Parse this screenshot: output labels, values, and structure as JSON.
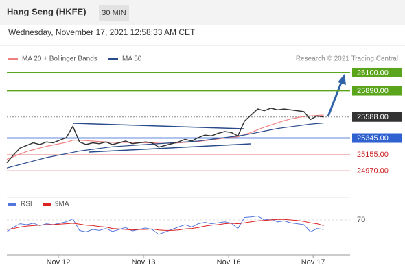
{
  "chart_data": {
    "type": "line",
    "title": "Hang Seng (HKFE)",
    "timeframe": "30 MIN",
    "subtitle": "Wednesday, November 17, 2021 12:58:33 AM CET",
    "attribution": "Research © 2021 Trading Central",
    "x": [
      0,
      1,
      2,
      3,
      4,
      5,
      6,
      7,
      8,
      9,
      10,
      11,
      12,
      13,
      14,
      15,
      16,
      17,
      18,
      19,
      20,
      21,
      22,
      23,
      24,
      25,
      26,
      27,
      28,
      29,
      30,
      31,
      32,
      33,
      34,
      35,
      36,
      37,
      38,
      39,
      40,
      41,
      42,
      43,
      44,
      45,
      46,
      47,
      48
    ],
    "values": [
      25060,
      25150,
      25230,
      25260,
      25290,
      25270,
      25300,
      25290,
      25320,
      25350,
      25480,
      25300,
      25270,
      25290,
      25280,
      25300,
      25270,
      25290,
      25310,
      25280,
      25290,
      25300,
      25290,
      25240,
      25260,
      25280,
      25300,
      25330,
      25310,
      25350,
      25380,
      25370,
      25400,
      25420,
      25410,
      25370,
      25540,
      25610,
      25680,
      25660,
      25690,
      25670,
      25680,
      25670,
      25660,
      25650,
      25560,
      25600,
      25588
    ],
    "color": "#333333",
    "series": [
      {
        "name": "MA 20 + Bollinger Bands",
        "color": "#f08080",
        "values": [
          25100,
          25130,
          25160,
          25190,
          25210,
          25230,
          25250,
          25265,
          25280,
          25295,
          25320,
          25320,
          25315,
          25310,
          25305,
          25300,
          25295,
          25295,
          25295,
          25295,
          25295,
          25290,
          25290,
          25285,
          25285,
          25285,
          25290,
          25295,
          25300,
          25305,
          25315,
          25325,
          25335,
          25345,
          25355,
          25360,
          25385,
          25410,
          25440,
          25470,
          25495,
          25520,
          25545,
          25565,
          25580,
          25595,
          25600,
          25605,
          25610
        ]
      },
      {
        "name": "MA 50",
        "color": "#2b4c8c",
        "values": [
          25000,
          25020,
          25040,
          25060,
          25080,
          25100,
          25120,
          25135,
          25150,
          25165,
          25180,
          25195,
          25205,
          25215,
          25225,
          25235,
          25245,
          25250,
          25255,
          25260,
          25265,
          25270,
          25275,
          25280,
          25285,
          25290,
          25295,
          25300,
          25305,
          25310,
          25320,
          25330,
          25340,
          25350,
          25360,
          25370,
          25380,
          25395,
          25410,
          25425,
          25440,
          25455,
          25465,
          25475,
          25485,
          25495,
          25505,
          25512,
          25518
        ]
      }
    ],
    "xlim": [
      0,
      52
    ],
    "xticks": [
      {
        "value": 7.8,
        "label": "Nov 12"
      },
      {
        "value": 20.7,
        "label": "Nov 13"
      },
      {
        "value": 33.6,
        "label": "Nov 16"
      },
      {
        "value": 46.4,
        "label": "Nov 17"
      }
    ],
    "ylim": [
      24725,
      26226
    ],
    "levels": [
      {
        "value": 26100,
        "label": "26100.00",
        "color": "#5aa51c",
        "style": "box"
      },
      {
        "value": 25890,
        "label": "25890.00",
        "color": "#5aa51c",
        "style": "box"
      },
      {
        "value": 25588,
        "label": "25588.00",
        "color": "#333333",
        "style": "box"
      },
      {
        "value": 25345,
        "label": "25345.00",
        "color": "#2f62d0",
        "style": "box"
      },
      {
        "value": 25155,
        "label": "25155.00",
        "color": "#cc2222",
        "style": "text"
      },
      {
        "value": 24970,
        "label": "24970.00",
        "color": "#cc2222",
        "style": "text"
      }
    ],
    "rsi": {
      "series": [
        {
          "name": "RSI",
          "color": "#5577dd",
          "values": [
            45,
            55,
            62,
            60,
            63,
            58,
            62,
            60,
            63,
            66,
            72,
            48,
            45,
            50,
            48,
            52,
            46,
            50,
            54,
            47,
            50,
            53,
            50,
            40,
            45,
            50,
            55,
            60,
            55,
            62,
            65,
            62,
            64,
            66,
            63,
            52,
            75,
            76,
            78,
            70,
            72,
            66,
            68,
            64,
            62,
            60,
            45,
            52,
            50
          ]
        },
        {
          "name": "9MA",
          "color": "#dd2222",
          "values": [
            50,
            52,
            55,
            57,
            58,
            59,
            60,
            60,
            61,
            62,
            63,
            61,
            59,
            58,
            56,
            55,
            52,
            51,
            50,
            49,
            50,
            50,
            51,
            49,
            48,
            48,
            49,
            51,
            52,
            54,
            57,
            59,
            60,
            62,
            63,
            62,
            64,
            66,
            68,
            69,
            70,
            71,
            71,
            70,
            69,
            67,
            64,
            62,
            58
          ]
        }
      ],
      "ylim": [
        0,
        100
      ],
      "yticks": [
        70
      ]
    }
  }
}
